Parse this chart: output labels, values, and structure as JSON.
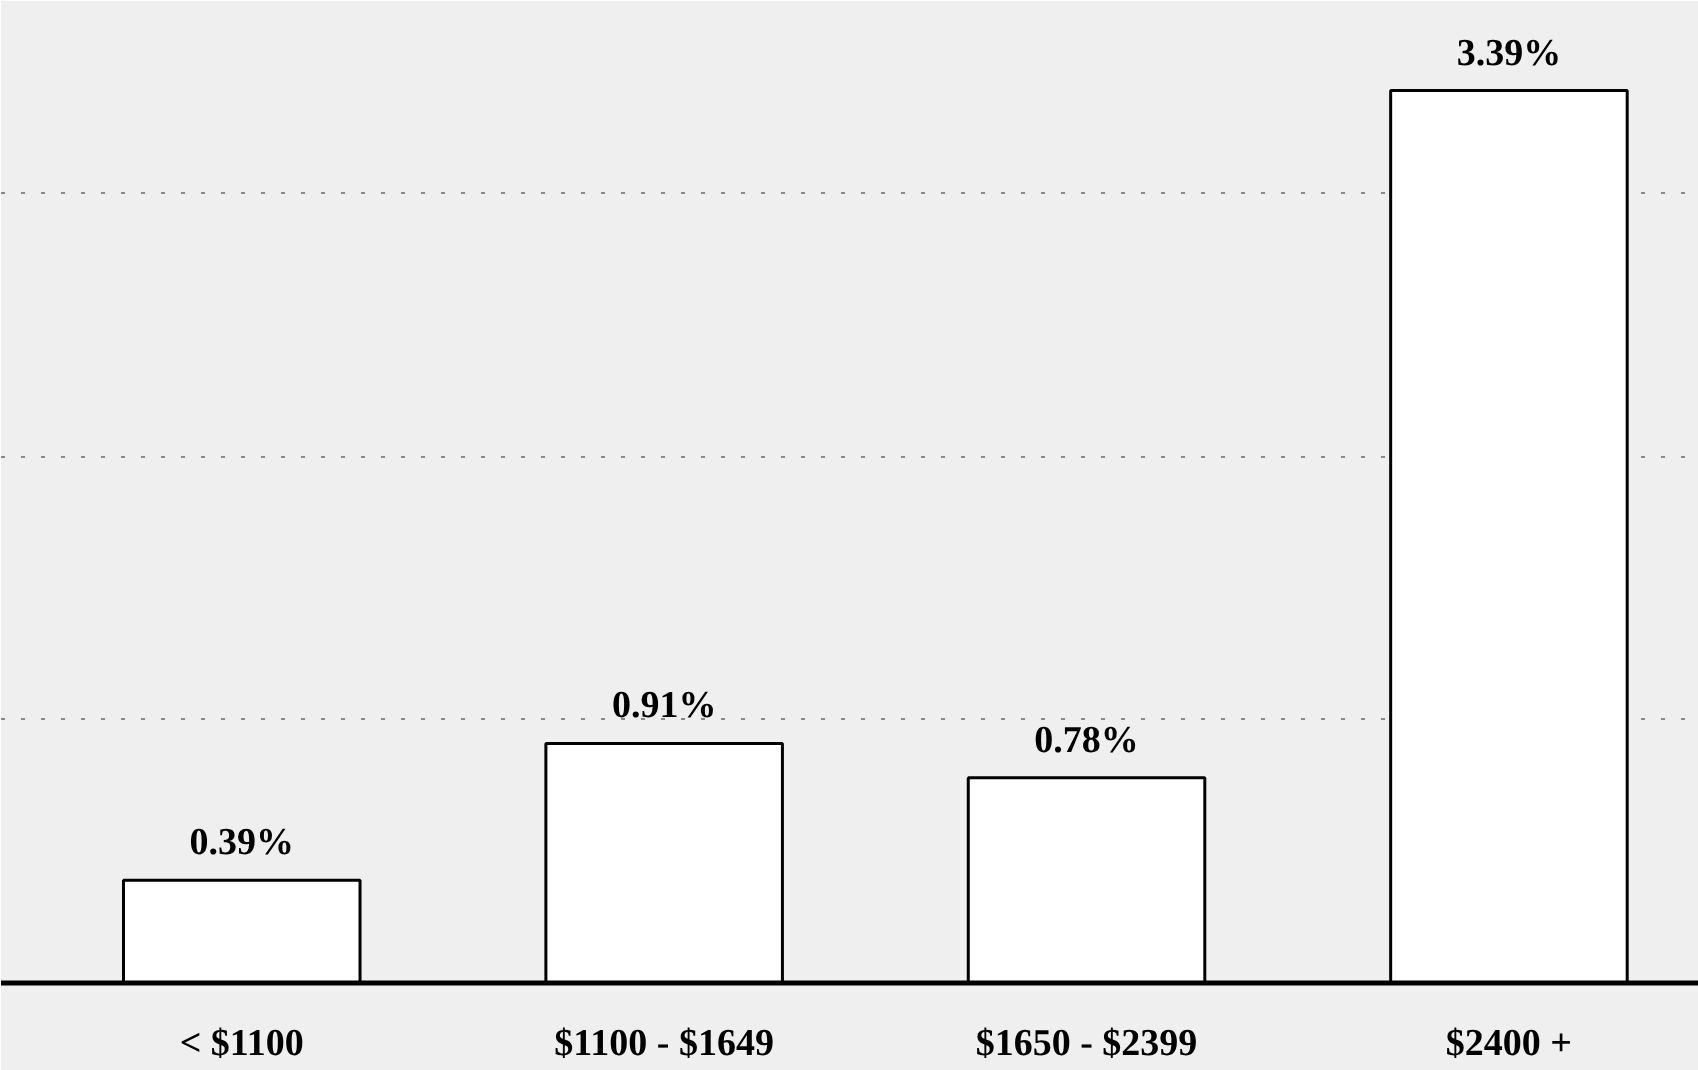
{
  "chart_data": {
    "type": "bar",
    "categories": [
      "< $1100",
      "$1100 - $1649",
      "$1650 - $2399",
      "$2400 +"
    ],
    "values": [
      0.39,
      0.91,
      0.78,
      3.39
    ],
    "value_labels": [
      "0.39%",
      "0.91%",
      "0.78%",
      "3.39%"
    ],
    "color": "#ffffff",
    "ylim": [
      0,
      3.73
    ],
    "yticks": [
      {
        "value": 1,
        "label": null
      },
      {
        "value": 2,
        "label": null
      },
      {
        "value": 3,
        "label": null
      }
    ],
    "grid": "y",
    "tick_labels": "x"
  }
}
